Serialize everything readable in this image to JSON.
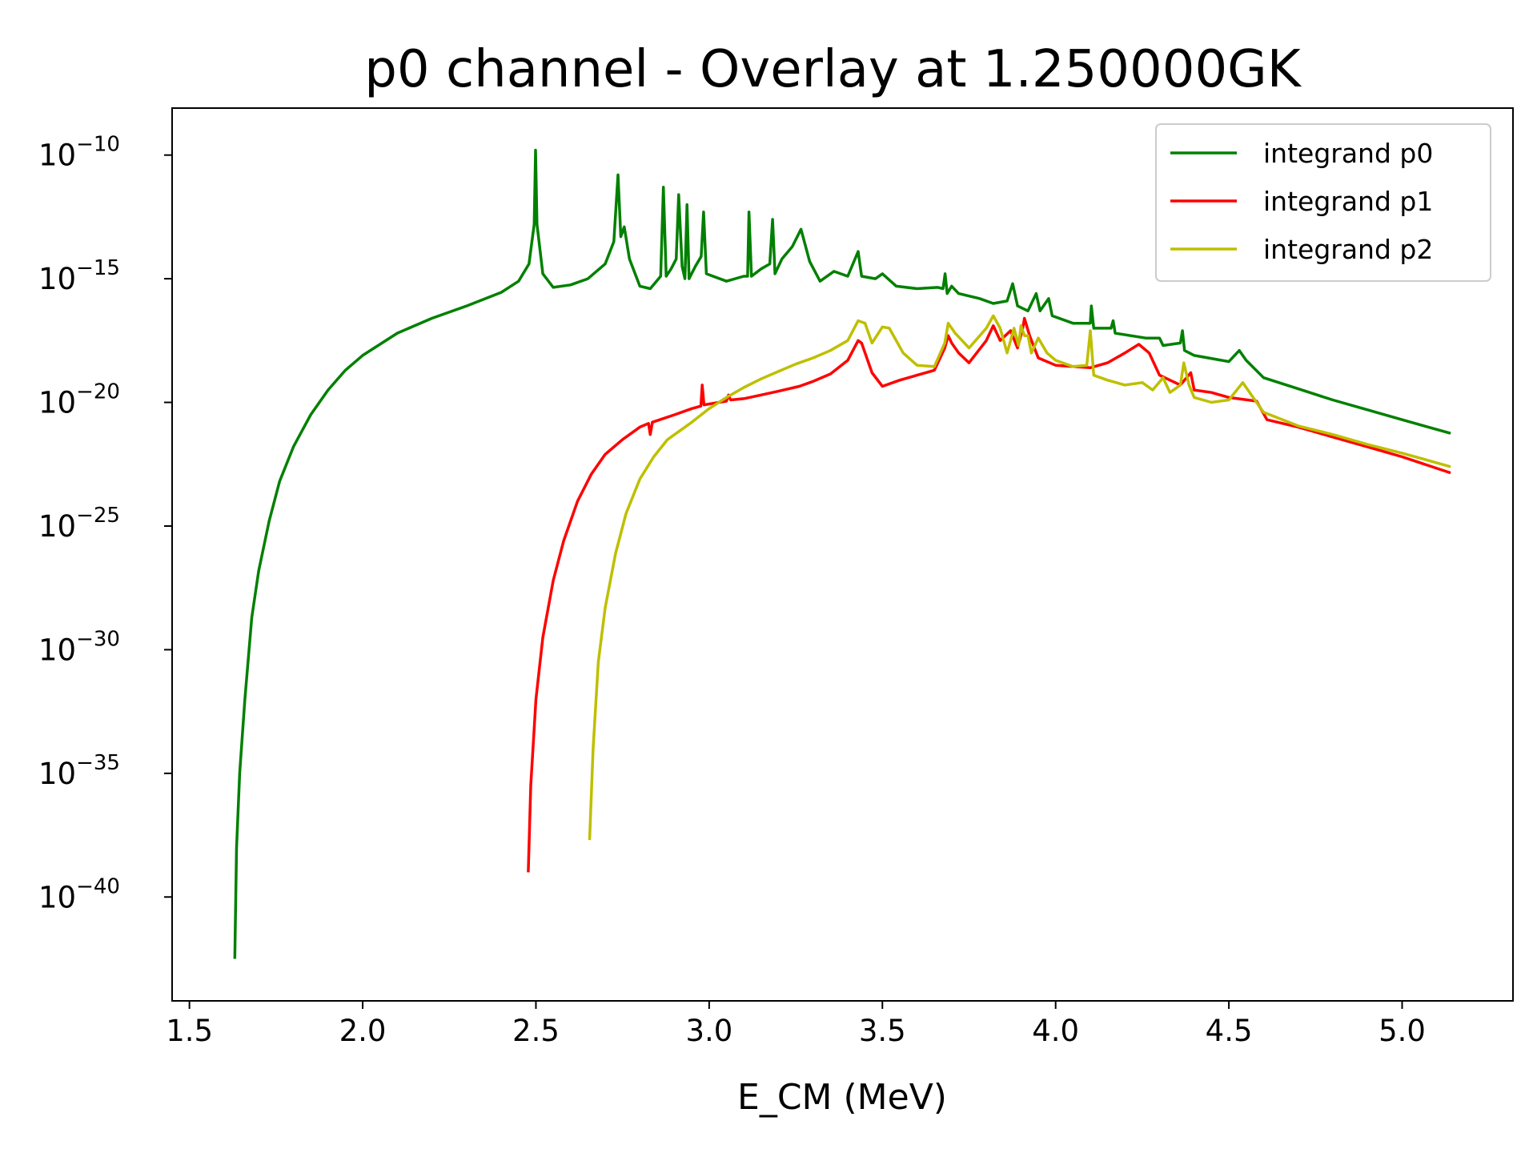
{
  "chart_data": {
    "type": "line",
    "title": "p0 channel - Overlay at 1.250000GK",
    "xlabel": "E_CM (MeV)",
    "ylabel": "",
    "xlim": [
      1.45,
      5.32
    ],
    "ylim_log10": [
      -44.2,
      -8.1
    ],
    "yscale": "log",
    "x_ticks": [
      1.5,
      2.0,
      2.5,
      3.0,
      3.5,
      4.0,
      4.5,
      5.0
    ],
    "x_tick_labels": [
      "1.5",
      "2.0",
      "2.5",
      "3.0",
      "3.5",
      "4.0",
      "4.5",
      "5.0"
    ],
    "y_ticks_log10": [
      -10,
      -15,
      -20,
      -25,
      -30,
      -35,
      -40
    ],
    "y_tick_base": "10",
    "y_tick_exponents": [
      "−10",
      "−15",
      "−20",
      "−25",
      "−30",
      "−35",
      "−40"
    ],
    "grid": false,
    "legend_position": "top-right",
    "series": [
      {
        "name": "integrand p0",
        "color": "#008000",
        "points_log10": [
          [
            1.631,
            -42.5
          ],
          [
            1.636,
            -38.0
          ],
          [
            1.645,
            -35.0
          ],
          [
            1.66,
            -32.0
          ],
          [
            1.68,
            -28.7
          ],
          [
            1.7,
            -26.8
          ],
          [
            1.73,
            -24.8
          ],
          [
            1.76,
            -23.2
          ],
          [
            1.8,
            -21.8
          ],
          [
            1.85,
            -20.5
          ],
          [
            1.9,
            -19.5
          ],
          [
            1.95,
            -18.7
          ],
          [
            2.0,
            -18.1
          ],
          [
            2.1,
            -17.2
          ],
          [
            2.2,
            -16.6
          ],
          [
            2.3,
            -16.1
          ],
          [
            2.4,
            -15.55
          ],
          [
            2.45,
            -15.1
          ],
          [
            2.48,
            -14.4
          ],
          [
            2.495,
            -12.8
          ],
          [
            2.499,
            -9.8
          ],
          [
            2.503,
            -12.8
          ],
          [
            2.52,
            -14.8
          ],
          [
            2.55,
            -15.35
          ],
          [
            2.6,
            -15.25
          ],
          [
            2.65,
            -15.0
          ],
          [
            2.7,
            -14.4
          ],
          [
            2.725,
            -13.5
          ],
          [
            2.737,
            -10.8
          ],
          [
            2.745,
            -13.3
          ],
          [
            2.755,
            -12.9
          ],
          [
            2.77,
            -14.2
          ],
          [
            2.8,
            -15.3
          ],
          [
            2.83,
            -15.4
          ],
          [
            2.86,
            -14.9
          ],
          [
            2.868,
            -11.3
          ],
          [
            2.876,
            -14.9
          ],
          [
            2.89,
            -14.6
          ],
          [
            2.905,
            -14.2
          ],
          [
            2.912,
            -11.6
          ],
          [
            2.922,
            -14.5
          ],
          [
            2.93,
            -15.0
          ],
          [
            2.936,
            -12.0
          ],
          [
            2.942,
            -15.0
          ],
          [
            2.96,
            -14.5
          ],
          [
            2.977,
            -14.1
          ],
          [
            2.984,
            -12.3
          ],
          [
            2.992,
            -14.8
          ],
          [
            3.05,
            -15.1
          ],
          [
            3.1,
            -14.9
          ],
          [
            3.111,
            -14.9
          ],
          [
            3.115,
            -12.3
          ],
          [
            3.122,
            -14.9
          ],
          [
            3.15,
            -14.6
          ],
          [
            3.175,
            -14.4
          ],
          [
            3.183,
            -12.6
          ],
          [
            3.19,
            -14.8
          ],
          [
            3.21,
            -14.2
          ],
          [
            3.24,
            -13.7
          ],
          [
            3.265,
            -13.0
          ],
          [
            3.29,
            -14.3
          ],
          [
            3.32,
            -15.1
          ],
          [
            3.36,
            -14.7
          ],
          [
            3.4,
            -14.9
          ],
          [
            3.43,
            -13.9
          ],
          [
            3.44,
            -14.9
          ],
          [
            3.48,
            -15.0
          ],
          [
            3.5,
            -14.8
          ],
          [
            3.54,
            -15.3
          ],
          [
            3.6,
            -15.4
          ],
          [
            3.66,
            -15.35
          ],
          [
            3.675,
            -15.4
          ],
          [
            3.681,
            -14.8
          ],
          [
            3.687,
            -15.6
          ],
          [
            3.7,
            -15.3
          ],
          [
            3.72,
            -15.6
          ],
          [
            3.78,
            -15.8
          ],
          [
            3.82,
            -16.0
          ],
          [
            3.86,
            -15.9
          ],
          [
            3.876,
            -15.2
          ],
          [
            3.89,
            -16.1
          ],
          [
            3.92,
            -16.3
          ],
          [
            3.944,
            -15.6
          ],
          [
            3.955,
            -16.3
          ],
          [
            3.98,
            -15.8
          ],
          [
            3.99,
            -16.5
          ],
          [
            4.05,
            -16.8
          ],
          [
            4.1,
            -16.8
          ],
          [
            4.103,
            -16.1
          ],
          [
            4.11,
            -17.0
          ],
          [
            4.16,
            -17.0
          ],
          [
            4.166,
            -16.7
          ],
          [
            4.172,
            -17.2
          ],
          [
            4.26,
            -17.4
          ],
          [
            4.3,
            -17.4
          ],
          [
            4.31,
            -17.7
          ],
          [
            4.36,
            -17.6
          ],
          [
            4.366,
            -17.1
          ],
          [
            4.372,
            -17.9
          ],
          [
            4.4,
            -18.1
          ],
          [
            4.5,
            -18.35
          ],
          [
            4.53,
            -17.9
          ],
          [
            4.55,
            -18.3
          ],
          [
            4.6,
            -19.0
          ],
          [
            4.7,
            -19.45
          ],
          [
            4.8,
            -19.9
          ],
          [
            4.9,
            -20.3
          ],
          [
            5.0,
            -20.7
          ],
          [
            5.14,
            -21.25
          ]
        ]
      },
      {
        "name": "integrand p1",
        "color": "#ff0000",
        "points_log10": [
          [
            2.478,
            -39.0
          ],
          [
            2.485,
            -35.5
          ],
          [
            2.5,
            -32.0
          ],
          [
            2.52,
            -29.5
          ],
          [
            2.55,
            -27.2
          ],
          [
            2.58,
            -25.6
          ],
          [
            2.62,
            -24.0
          ],
          [
            2.66,
            -22.9
          ],
          [
            2.7,
            -22.1
          ],
          [
            2.75,
            -21.5
          ],
          [
            2.8,
            -21.0
          ],
          [
            2.825,
            -20.85
          ],
          [
            2.83,
            -21.3
          ],
          [
            2.836,
            -20.8
          ],
          [
            2.9,
            -20.5
          ],
          [
            2.95,
            -20.25
          ],
          [
            2.976,
            -20.15
          ],
          [
            2.98,
            -19.3
          ],
          [
            2.985,
            -20.1
          ],
          [
            3.05,
            -19.95
          ],
          [
            3.056,
            -19.7
          ],
          [
            3.062,
            -19.9
          ],
          [
            3.1,
            -19.85
          ],
          [
            3.15,
            -19.7
          ],
          [
            3.2,
            -19.55
          ],
          [
            3.26,
            -19.35
          ],
          [
            3.3,
            -19.15
          ],
          [
            3.35,
            -18.85
          ],
          [
            3.4,
            -18.3
          ],
          [
            3.43,
            -17.5
          ],
          [
            3.44,
            -17.6
          ],
          [
            3.47,
            -18.8
          ],
          [
            3.5,
            -19.35
          ],
          [
            3.55,
            -19.1
          ],
          [
            3.6,
            -18.9
          ],
          [
            3.65,
            -18.7
          ],
          [
            3.68,
            -17.8
          ],
          [
            3.69,
            -17.3
          ],
          [
            3.7,
            -17.6
          ],
          [
            3.72,
            -18.0
          ],
          [
            3.75,
            -18.4
          ],
          [
            3.8,
            -17.5
          ],
          [
            3.82,
            -16.9
          ],
          [
            3.84,
            -17.5
          ],
          [
            3.87,
            -17.1
          ],
          [
            3.89,
            -17.8
          ],
          [
            3.905,
            -17.0
          ],
          [
            3.91,
            -16.6
          ],
          [
            3.925,
            -17.3
          ],
          [
            3.95,
            -18.2
          ],
          [
            4.0,
            -18.5
          ],
          [
            4.1,
            -18.6
          ],
          [
            4.15,
            -18.4
          ],
          [
            4.2,
            -18.0
          ],
          [
            4.24,
            -17.65
          ],
          [
            4.27,
            -18.0
          ],
          [
            4.3,
            -18.9
          ],
          [
            4.36,
            -19.3
          ],
          [
            4.39,
            -18.8
          ],
          [
            4.4,
            -19.5
          ],
          [
            4.45,
            -19.6
          ],
          [
            4.5,
            -19.8
          ],
          [
            4.58,
            -19.95
          ],
          [
            4.61,
            -20.7
          ],
          [
            4.7,
            -21.0
          ],
          [
            4.8,
            -21.4
          ],
          [
            4.9,
            -21.8
          ],
          [
            5.0,
            -22.2
          ],
          [
            5.14,
            -22.85
          ]
        ]
      },
      {
        "name": "integrand p2",
        "color": "#bfbf00",
        "points_log10": [
          [
            2.655,
            -37.7
          ],
          [
            2.665,
            -34.0
          ],
          [
            2.68,
            -30.5
          ],
          [
            2.7,
            -28.3
          ],
          [
            2.73,
            -26.1
          ],
          [
            2.76,
            -24.5
          ],
          [
            2.8,
            -23.1
          ],
          [
            2.84,
            -22.2
          ],
          [
            2.88,
            -21.5
          ],
          [
            2.95,
            -20.8
          ],
          [
            3.0,
            -20.25
          ],
          [
            3.05,
            -19.8
          ],
          [
            3.1,
            -19.4
          ],
          [
            3.15,
            -19.05
          ],
          [
            3.2,
            -18.75
          ],
          [
            3.25,
            -18.45
          ],
          [
            3.3,
            -18.2
          ],
          [
            3.35,
            -17.9
          ],
          [
            3.4,
            -17.5
          ],
          [
            3.43,
            -16.7
          ],
          [
            3.45,
            -16.8
          ],
          [
            3.47,
            -17.6
          ],
          [
            3.5,
            -16.95
          ],
          [
            3.52,
            -17.0
          ],
          [
            3.56,
            -18.0
          ],
          [
            3.6,
            -18.5
          ],
          [
            3.65,
            -18.55
          ],
          [
            3.68,
            -17.6
          ],
          [
            3.69,
            -16.8
          ],
          [
            3.71,
            -17.2
          ],
          [
            3.75,
            -17.8
          ],
          [
            3.8,
            -17.0
          ],
          [
            3.82,
            -16.5
          ],
          [
            3.84,
            -17.0
          ],
          [
            3.86,
            -18.0
          ],
          [
            3.88,
            -17.0
          ],
          [
            3.893,
            -17.7
          ],
          [
            3.9,
            -16.9
          ],
          [
            3.91,
            -17.3
          ],
          [
            3.92,
            -17.3
          ],
          [
            3.93,
            -18.0
          ],
          [
            3.95,
            -17.4
          ],
          [
            3.975,
            -18.0
          ],
          [
            4.0,
            -18.3
          ],
          [
            4.05,
            -18.55
          ],
          [
            4.09,
            -18.5
          ],
          [
            4.1,
            -17.1
          ],
          [
            4.11,
            -18.9
          ],
          [
            4.15,
            -19.1
          ],
          [
            4.2,
            -19.3
          ],
          [
            4.25,
            -19.2
          ],
          [
            4.28,
            -19.5
          ],
          [
            4.31,
            -19.0
          ],
          [
            4.33,
            -19.6
          ],
          [
            4.36,
            -19.3
          ],
          [
            4.37,
            -18.4
          ],
          [
            4.385,
            -19.3
          ],
          [
            4.4,
            -19.8
          ],
          [
            4.45,
            -20.0
          ],
          [
            4.5,
            -19.9
          ],
          [
            4.54,
            -19.2
          ],
          [
            4.56,
            -19.6
          ],
          [
            4.6,
            -20.4
          ],
          [
            4.7,
            -20.95
          ],
          [
            4.8,
            -21.3
          ],
          [
            4.9,
            -21.7
          ],
          [
            5.0,
            -22.05
          ],
          [
            5.14,
            -22.6
          ]
        ]
      }
    ]
  }
}
